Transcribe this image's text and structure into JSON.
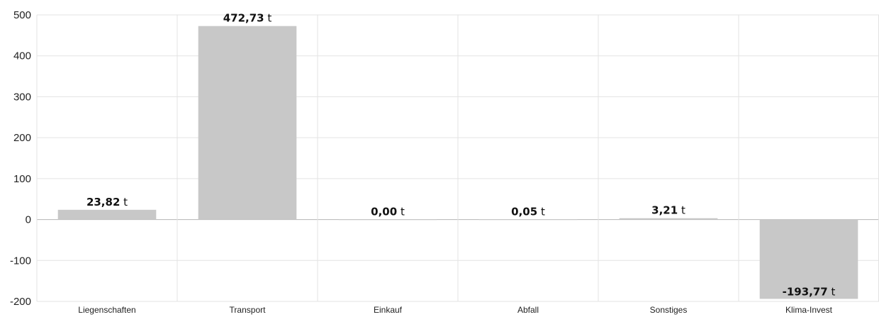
{
  "chart_data": {
    "type": "bar",
    "categories": [
      "Liegenschaften",
      "Transport",
      "Einkauf",
      "Abfall",
      "Sonstiges",
      "Klima-Invest"
    ],
    "values": [
      23.82,
      472.73,
      0.0,
      0.05,
      3.21,
      -193.77
    ],
    "value_labels": [
      "23,82",
      "472,73",
      "0,00",
      "0,05",
      "3,21",
      "-193,77"
    ],
    "unit": "t",
    "ylim": [
      -200,
      500
    ],
    "yticks": [
      500,
      400,
      300,
      200,
      100,
      0,
      -100,
      -200
    ],
    "ytick_labels": [
      "500",
      "400",
      "300",
      "200",
      "100",
      "0",
      "-100",
      "-200"
    ],
    "grid": true,
    "bar_color": "#c8c8c8",
    "grid_color": "#e3e3e3",
    "zero_line_color": "#b5b5b5"
  }
}
